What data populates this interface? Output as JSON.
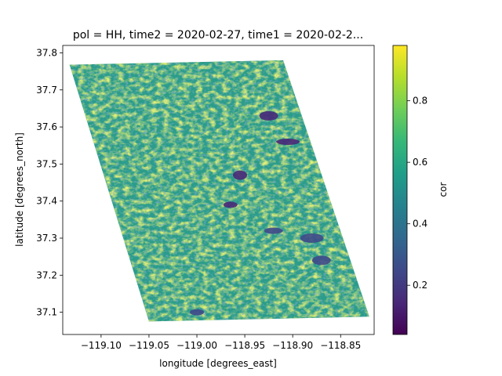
{
  "chart_data": {
    "type": "heatmap",
    "title": "pol = HH, time2 = 2020-02-27, time1 = 2020-02-2...",
    "xlabel": "longitude [degrees_east]",
    "ylabel": "latitude [degrees_north]",
    "xlim": [
      -119.14,
      -118.815
    ],
    "ylim": [
      37.04,
      37.82
    ],
    "x_ticks": [
      {
        "value": -119.1,
        "label": "−119.10"
      },
      {
        "value": -119.05,
        "label": "−119.05"
      },
      {
        "value": -119.0,
        "label": "−119.00"
      },
      {
        "value": -118.95,
        "label": "−118.95"
      },
      {
        "value": -118.9,
        "label": "−118.90"
      },
      {
        "value": -118.85,
        "label": "−118.85"
      }
    ],
    "y_ticks": [
      {
        "value": 37.1,
        "label": "37.1"
      },
      {
        "value": 37.2,
        "label": "37.2"
      },
      {
        "value": 37.3,
        "label": "37.3"
      },
      {
        "value": 37.4,
        "label": "37.4"
      },
      {
        "value": 37.5,
        "label": "37.5"
      },
      {
        "value": 37.6,
        "label": "37.6"
      },
      {
        "value": 37.7,
        "label": "37.7"
      },
      {
        "value": 37.8,
        "label": "37.8"
      }
    ],
    "colorbar": {
      "label": "cor",
      "colormap": "viridis",
      "range": [
        0.04,
        0.98
      ],
      "ticks": [
        {
          "value": 0.2,
          "label": "0.2"
        },
        {
          "value": 0.4,
          "label": "0.4"
        },
        {
          "value": 0.6,
          "label": "0.6"
        },
        {
          "value": 0.8,
          "label": "0.8"
        }
      ]
    },
    "footprint_corners": [
      {
        "lon": -119.133,
        "lat": 37.768
      },
      {
        "lon": -118.91,
        "lat": 37.78
      },
      {
        "lon": -118.82,
        "lat": 37.088
      },
      {
        "lon": -119.05,
        "lat": 37.075
      }
    ],
    "low_coherence_patches": [
      {
        "lon": -118.965,
        "lat": 37.39,
        "value": 0.12
      },
      {
        "lon": -118.925,
        "lat": 37.63,
        "value": 0.15
      },
      {
        "lon": -118.905,
        "lat": 37.56,
        "value": 0.15
      },
      {
        "lon": -118.955,
        "lat": 37.47,
        "value": 0.18
      },
      {
        "lon": -118.92,
        "lat": 37.32,
        "value": 0.2
      },
      {
        "lon": -118.88,
        "lat": 37.3,
        "value": 0.2
      },
      {
        "lon": -119.0,
        "lat": 37.1,
        "value": 0.22
      },
      {
        "lon": -118.87,
        "lat": 37.24,
        "value": 0.22
      }
    ]
  },
  "colors": {
    "viridis": [
      "#440154",
      "#482878",
      "#3e4989",
      "#31688e",
      "#26828e",
      "#1f9e89",
      "#35b779",
      "#6ece58",
      "#b5de2b",
      "#fde725"
    ],
    "axis": "#000000",
    "background": "#ffffff"
  }
}
